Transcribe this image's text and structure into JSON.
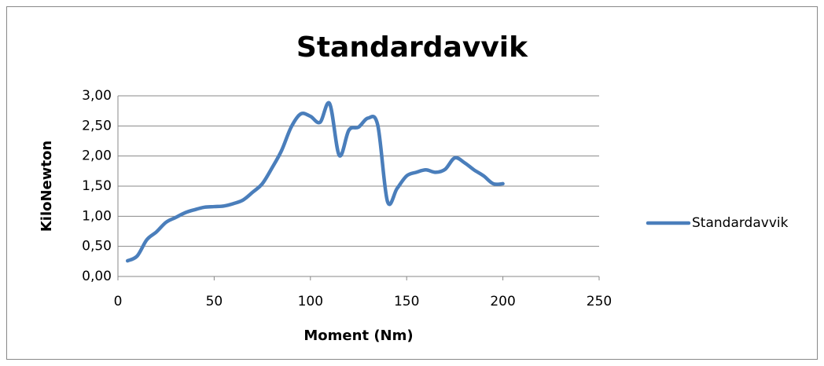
{
  "chart_data": {
    "type": "line",
    "title": "Standardavvik",
    "xlabel": "Moment (Nm)",
    "ylabel": "KiloNewton",
    "x": [
      5,
      10,
      15,
      20,
      25,
      30,
      35,
      40,
      45,
      50,
      55,
      60,
      65,
      70,
      75,
      80,
      85,
      90,
      95,
      100,
      105,
      110,
      115,
      120,
      125,
      130,
      135,
      140,
      145,
      150,
      155,
      160,
      165,
      170,
      175,
      180,
      185,
      190,
      195,
      200
    ],
    "series": [
      {
        "name": "Standardavvik",
        "color": "#4a7ebb",
        "values": [
          0.26,
          0.34,
          0.61,
          0.74,
          0.9,
          0.98,
          1.06,
          1.11,
          1.15,
          1.16,
          1.17,
          1.21,
          1.27,
          1.4,
          1.54,
          1.8,
          2.09,
          2.48,
          2.7,
          2.66,
          2.56,
          2.87,
          2.01,
          2.43,
          2.48,
          2.63,
          2.51,
          1.25,
          1.46,
          1.67,
          1.73,
          1.77,
          1.73,
          1.78,
          1.97,
          1.89,
          1.77,
          1.67,
          1.54,
          1.54
        ]
      }
    ],
    "xlim": [
      0,
      250
    ],
    "xticks": [
      0,
      50,
      100,
      150,
      200,
      250
    ],
    "ylim": [
      0,
      3
    ],
    "yticks": [
      {
        "value": 0,
        "label": "0,00"
      },
      {
        "value": 0.5,
        "label": "0,50"
      },
      {
        "value": 1,
        "label": "1,00"
      },
      {
        "value": 1.5,
        "label": "1,50"
      },
      {
        "value": 2,
        "label": "2,00"
      },
      {
        "value": 2.5,
        "label": "2,50"
      },
      {
        "value": 3,
        "label": "3,00"
      }
    ],
    "grid": true,
    "legend": "right",
    "smooth": true
  }
}
